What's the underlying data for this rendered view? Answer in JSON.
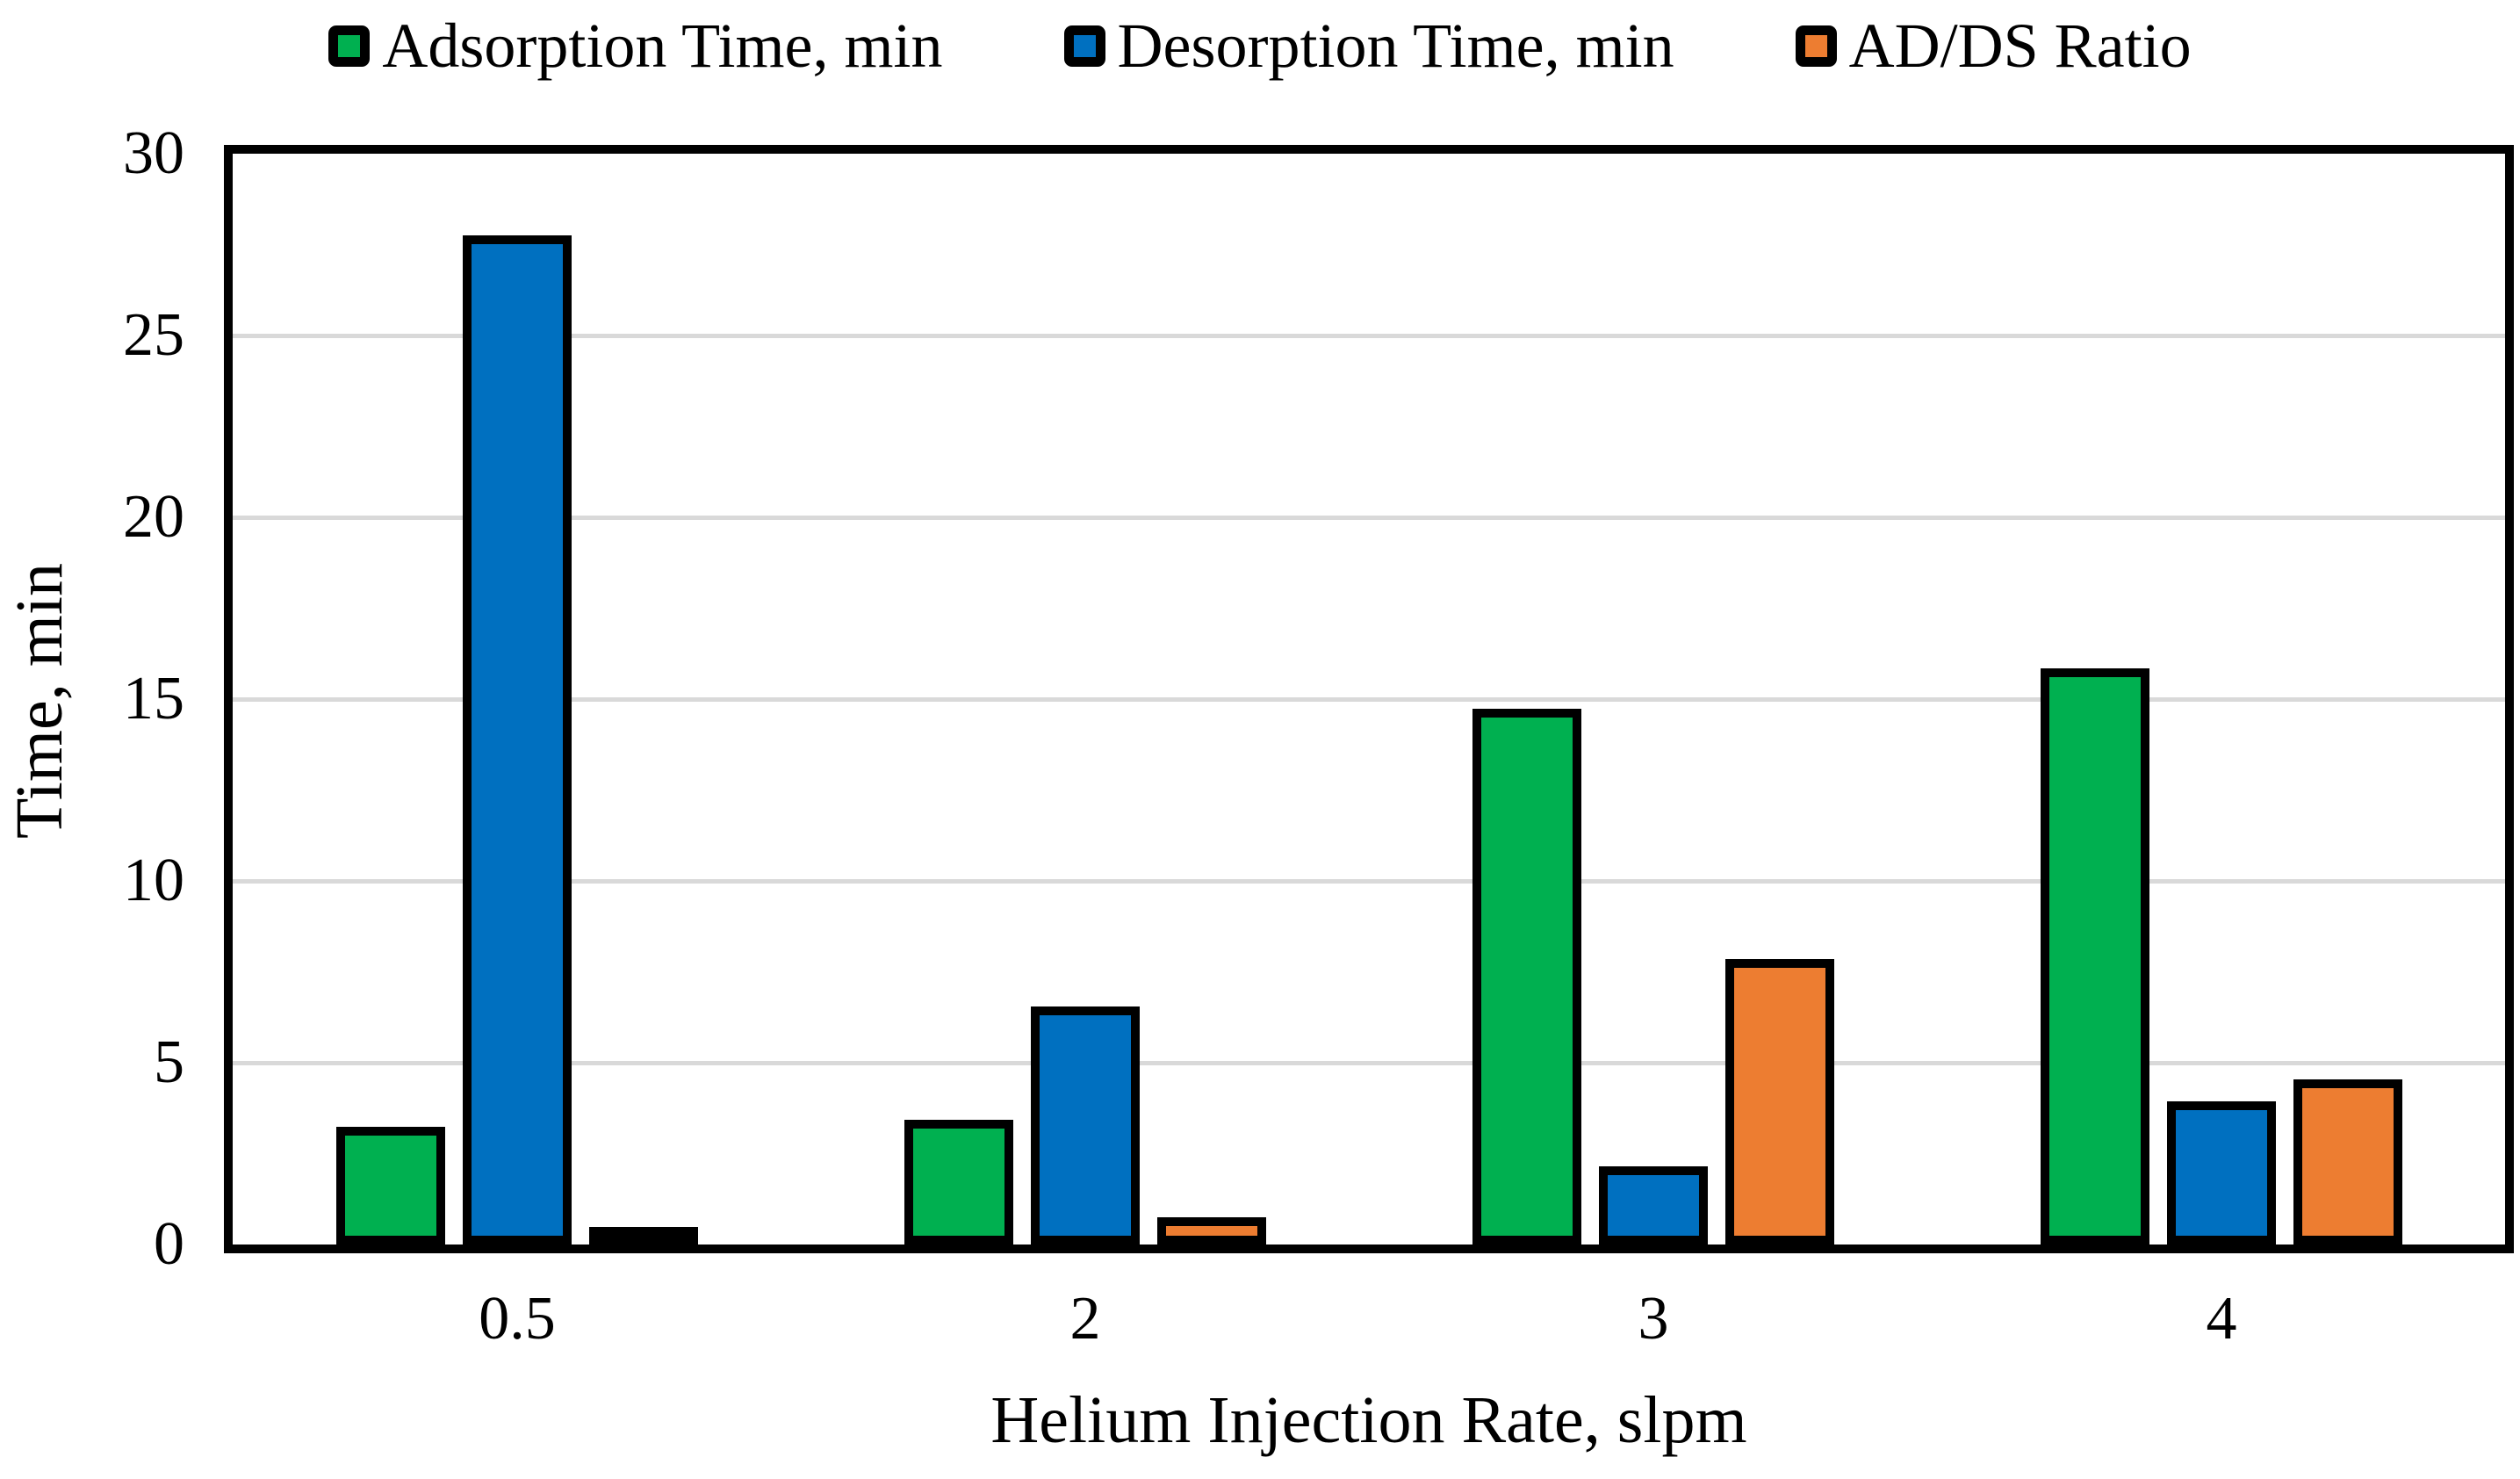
{
  "chart_data": {
    "type": "bar",
    "title": "",
    "categories": [
      "0.5",
      "2",
      "3",
      "4"
    ],
    "series": [
      {
        "name": "Adsorption Time, min",
        "color": "#00B050",
        "values": [
          3.0,
          3.2,
          14.5,
          15.6
        ]
      },
      {
        "name": "Desorption Time, min",
        "color": "#0070C0",
        "values": [
          27.5,
          6.3,
          1.9,
          3.7
        ]
      },
      {
        "name": "AD/DS Ratio",
        "color": "#ED7D31",
        "values": [
          0.1,
          0.5,
          7.6,
          4.3
        ]
      }
    ],
    "xlabel": "Helium Injection Rate, slpm",
    "ylabel": "Time, min",
    "ylim": [
      0,
      30
    ],
    "ytick_step": 5,
    "yticks": [
      "0",
      "5",
      "10",
      "15",
      "20",
      "25",
      "30"
    ],
    "grid": "horizontal",
    "grid_color": "#D9D9D9",
    "bar_outline_color": "#000000",
    "axis_color": "#000000",
    "legend_position": "top"
  }
}
